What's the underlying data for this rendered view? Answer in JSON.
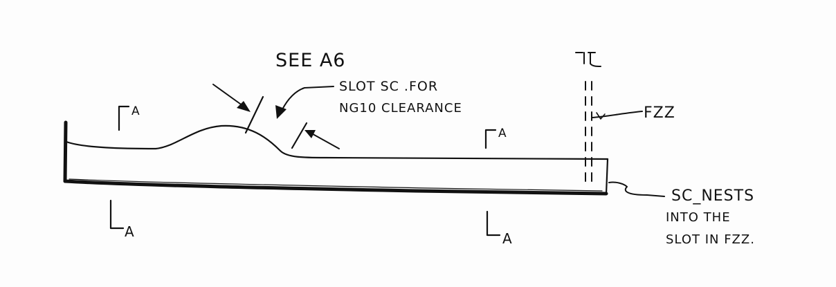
{
  "diagram": {
    "ink_color": "#111111",
    "background": "#fdfdfd",
    "callouts": {
      "see_ref": "SEE A6",
      "slot_line1": "SLOT SC .FOR",
      "slot_line2": "NG10 CLEARANCE",
      "fzz": "FZZ",
      "nests_line1": "SC_NESTS",
      "nests_line2": "INTO THE",
      "nests_line3": "SLOT IN FZZ."
    },
    "section_markers": {
      "left_top": "A",
      "left_bottom": "A",
      "right_top": "A",
      "right_bottom": "A"
    }
  }
}
